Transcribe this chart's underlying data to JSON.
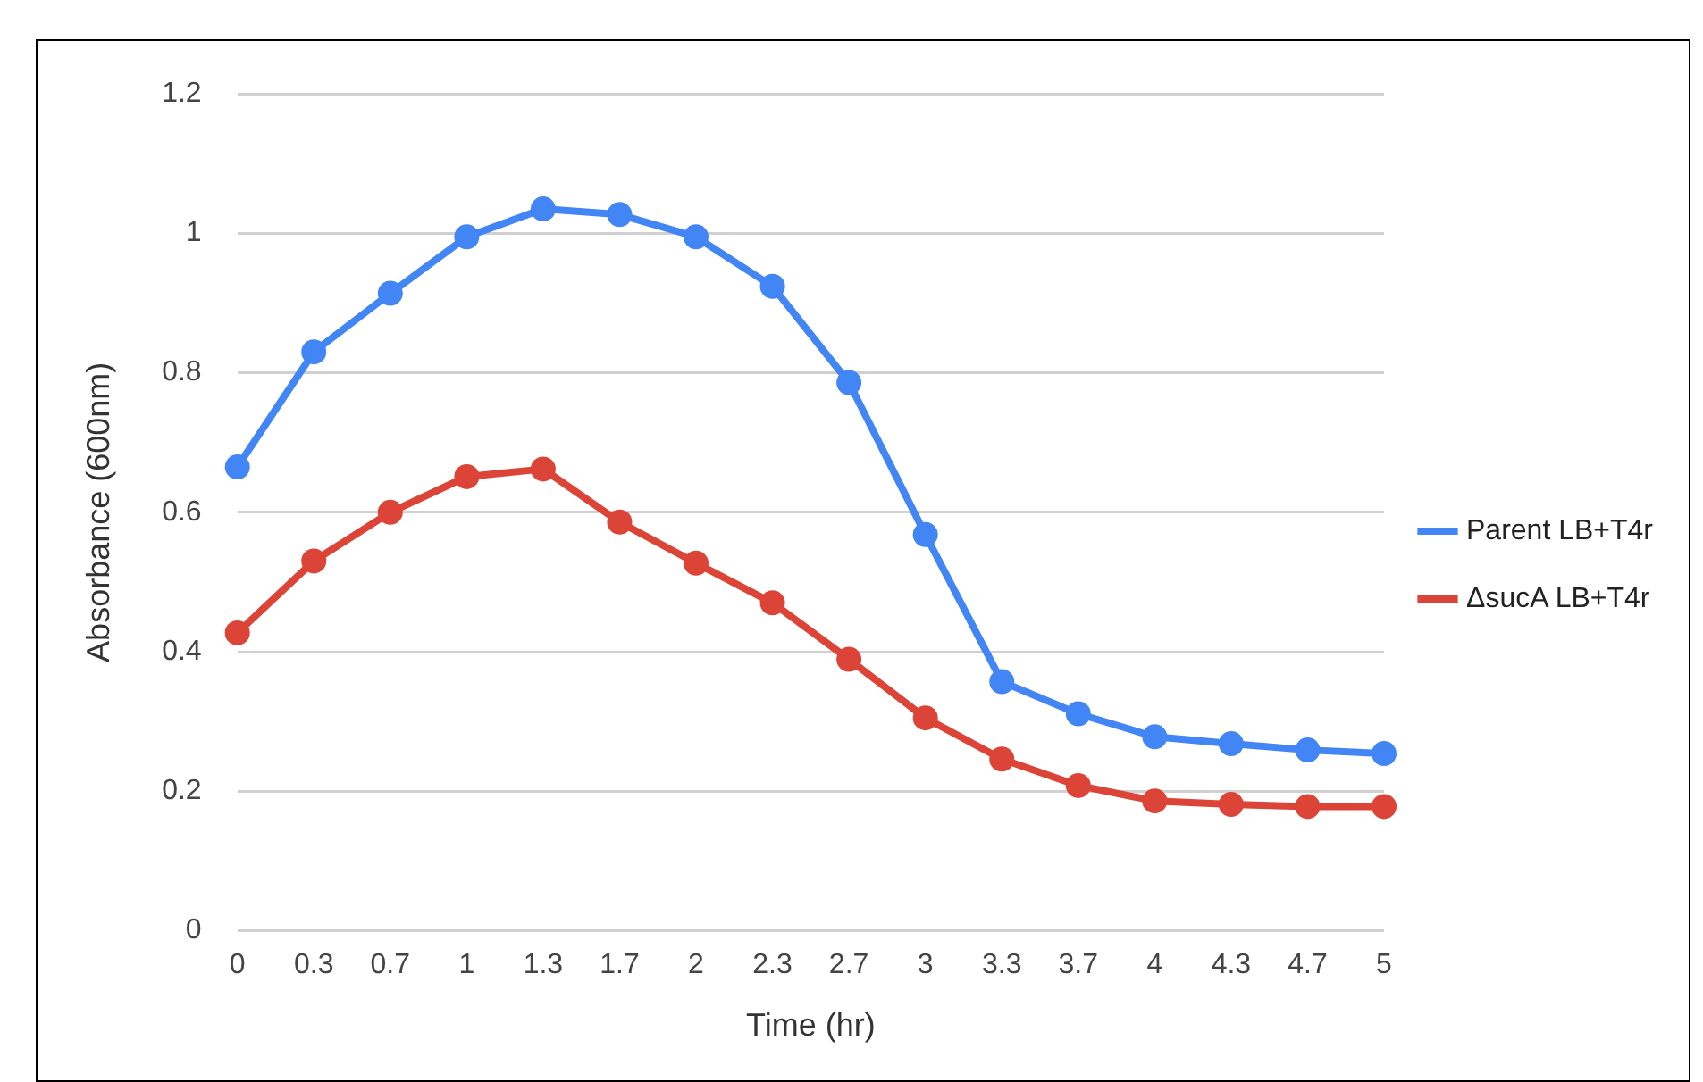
{
  "chart_data": {
    "type": "line",
    "xlabel": "Time (hr)",
    "ylabel": "Absorbance (600nm)",
    "categories": [
      "0",
      "0.3",
      "0.7",
      "1",
      "1.3",
      "1.7",
      "2",
      "2.3",
      "2.7",
      "3",
      "3.3",
      "3.7",
      "4",
      "4.3",
      "4.7",
      "5"
    ],
    "series": [
      {
        "name": "Parent LB+T4r",
        "color": "#4285f4",
        "values": [
          0.665,
          0.83,
          0.914,
          0.995,
          1.035,
          1.027,
          0.995,
          0.924,
          0.786,
          0.568,
          0.357,
          0.311,
          0.278,
          0.268,
          0.259,
          0.254
        ]
      },
      {
        "name": "ΔsucA LB+T4r",
        "color": "#db4437",
        "values": [
          0.427,
          0.53,
          0.6,
          0.651,
          0.662,
          0.586,
          0.527,
          0.47,
          0.389,
          0.305,
          0.246,
          0.208,
          0.186,
          0.181,
          0.178,
          0.178
        ]
      }
    ],
    "ylim": [
      0,
      1.2
    ],
    "yticks": [
      0,
      0.2,
      0.4,
      0.6,
      0.8,
      1,
      1.2
    ],
    "grid": "y",
    "legend": "right",
    "marker": "circle",
    "line_style": "solid"
  }
}
